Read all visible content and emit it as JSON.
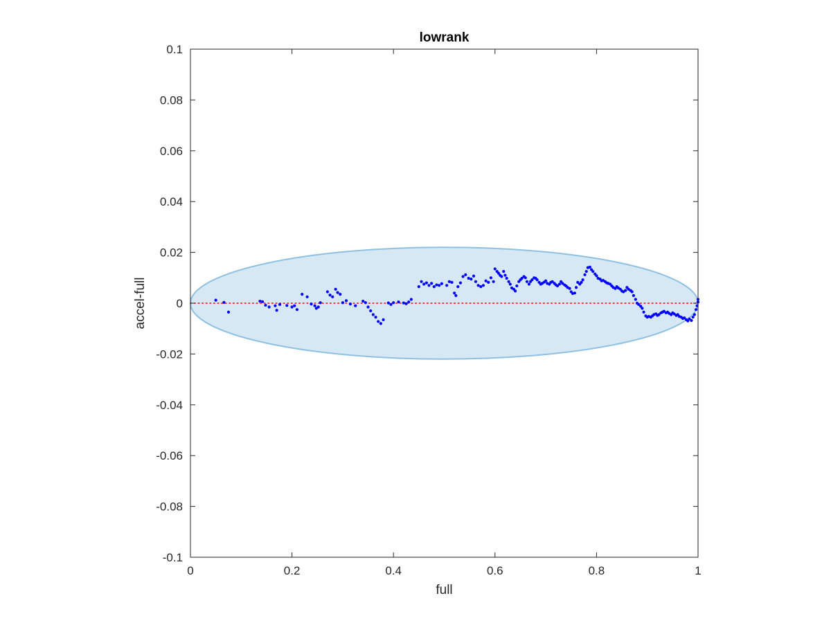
{
  "chart_data": {
    "type": "scatter",
    "title": "lowrank",
    "xlabel": "full",
    "ylabel": "accel-full",
    "xlim": [
      0,
      1
    ],
    "ylim": [
      -0.1,
      0.1
    ],
    "xticks": [
      0,
      0.2,
      0.4,
      0.6,
      0.8,
      1
    ],
    "xtick_labels": [
      "0",
      "0.2",
      "0.4",
      "0.6",
      "0.8",
      "1"
    ],
    "yticks": [
      -0.1,
      -0.08,
      -0.06,
      -0.04,
      -0.02,
      0,
      0.02,
      0.04,
      0.06,
      0.08,
      0.1
    ],
    "ytick_labels": [
      "-0.1",
      "-0.08",
      "-0.06",
      "-0.04",
      "-0.02",
      "0",
      "0.02",
      "0.04",
      "0.06",
      "0.08",
      "0.1"
    ],
    "grid": false,
    "reference_line": {
      "y": 0,
      "style": "dotted",
      "color": "#ff0000"
    },
    "ellipse": {
      "center": [
        0.5,
        0
      ],
      "x_radius": 0.5,
      "y_radius": 0.022,
      "fill": "#d6e8f4",
      "stroke": "#8ec0e2"
    },
    "series": [
      {
        "color": "#0000ff",
        "points": [
          [
            0.05,
            0.0012
          ],
          [
            0.066,
            0.0003
          ],
          [
            0.075,
            -0.0035
          ],
          [
            0.137,
            0.0008
          ],
          [
            0.142,
            0.0006
          ],
          [
            0.148,
            -0.0008
          ],
          [
            0.155,
            -0.0015
          ],
          [
            0.167,
            -0.001
          ],
          [
            0.17,
            -0.0028
          ],
          [
            0.176,
            -0.0005
          ],
          [
            0.19,
            -0.0009
          ],
          [
            0.2,
            -0.0015
          ],
          [
            0.205,
            -0.001
          ],
          [
            0.21,
            -0.0025
          ],
          [
            0.22,
            0.0035
          ],
          [
            0.23,
            0.0025
          ],
          [
            0.238,
            -0.0003
          ],
          [
            0.245,
            -0.001
          ],
          [
            0.248,
            -0.002
          ],
          [
            0.252,
            -0.0015
          ],
          [
            0.256,
            0.0002
          ],
          [
            0.27,
            0.0045
          ],
          [
            0.275,
            0.0032
          ],
          [
            0.28,
            0.0025
          ],
          [
            0.286,
            0.0055
          ],
          [
            0.29,
            0.0042
          ],
          [
            0.295,
            0.0035
          ],
          [
            0.3,
            0.0002
          ],
          [
            0.307,
            0.001
          ],
          [
            0.315,
            -0.0003
          ],
          [
            0.325,
            -0.001
          ],
          [
            0.34,
            0.0008
          ],
          [
            0.345,
            0.0002
          ],
          [
            0.35,
            -0.0015
          ],
          [
            0.355,
            -0.003
          ],
          [
            0.36,
            -0.0045
          ],
          [
            0.365,
            -0.0055
          ],
          [
            0.37,
            -0.0072
          ],
          [
            0.375,
            -0.008
          ],
          [
            0.38,
            -0.0065
          ],
          [
            0.39,
            0.0001
          ],
          [
            0.395,
            -0.0005
          ],
          [
            0.4,
            0.0002
          ],
          [
            0.41,
            0.0005
          ],
          [
            0.42,
            0.0001
          ],
          [
            0.425,
            -0.0002
          ],
          [
            0.43,
            0.0005
          ],
          [
            0.435,
            0.0015
          ],
          [
            0.45,
            0.0065
          ],
          [
            0.455,
            0.0085
          ],
          [
            0.46,
            0.0075
          ],
          [
            0.465,
            0.008
          ],
          [
            0.47,
            0.007
          ],
          [
            0.475,
            0.0078
          ],
          [
            0.48,
            0.0065
          ],
          [
            0.485,
            0.0072
          ],
          [
            0.49,
            0.007
          ],
          [
            0.495,
            0.0077
          ],
          [
            0.505,
            0.007
          ],
          [
            0.51,
            0.0085
          ],
          [
            0.515,
            0.0082
          ],
          [
            0.52,
            0.004
          ],
          [
            0.523,
            0.003
          ],
          [
            0.527,
            0.0065
          ],
          [
            0.532,
            0.008
          ],
          [
            0.537,
            0.0105
          ],
          [
            0.542,
            0.0112
          ],
          [
            0.548,
            0.0098
          ],
          [
            0.553,
            0.0095
          ],
          [
            0.558,
            0.0107
          ],
          [
            0.562,
            0.0085
          ],
          [
            0.567,
            0.007
          ],
          [
            0.572,
            0.0065
          ],
          [
            0.577,
            0.007
          ],
          [
            0.582,
            0.0088
          ],
          [
            0.587,
            0.0082
          ],
          [
            0.592,
            0.01
          ],
          [
            0.597,
            0.0085
          ],
          [
            0.6,
            0.0135
          ],
          [
            0.604,
            0.0125
          ],
          [
            0.607,
            0.0118
          ],
          [
            0.61,
            0.011
          ],
          [
            0.613,
            0.0105
          ],
          [
            0.617,
            0.0125
          ],
          [
            0.62,
            0.011
          ],
          [
            0.623,
            0.0098
          ],
          [
            0.627,
            0.0085
          ],
          [
            0.63,
            0.0075
          ],
          [
            0.633,
            0.006
          ],
          [
            0.637,
            0.0055
          ],
          [
            0.64,
            0.0048
          ],
          [
            0.643,
            0.0068
          ],
          [
            0.647,
            0.0085
          ],
          [
            0.65,
            0.0092
          ],
          [
            0.653,
            0.0098
          ],
          [
            0.657,
            0.0105
          ],
          [
            0.66,
            0.01
          ],
          [
            0.663,
            0.0085
          ],
          [
            0.667,
            0.0075
          ],
          [
            0.67,
            0.0085
          ],
          [
            0.673,
            0.0092
          ],
          [
            0.677,
            0.01
          ],
          [
            0.68,
            0.0098
          ],
          [
            0.683,
            0.0092
          ],
          [
            0.687,
            0.0082
          ],
          [
            0.69,
            0.0075
          ],
          [
            0.693,
            0.0078
          ],
          [
            0.697,
            0.0083
          ],
          [
            0.7,
            0.0088
          ],
          [
            0.703,
            0.0078
          ],
          [
            0.707,
            0.0075
          ],
          [
            0.71,
            0.0082
          ],
          [
            0.713,
            0.0085
          ],
          [
            0.717,
            0.0078
          ],
          [
            0.72,
            0.0072
          ],
          [
            0.723,
            0.0068
          ],
          [
            0.727,
            0.0075
          ],
          [
            0.73,
            0.0085
          ],
          [
            0.733,
            0.0078
          ],
          [
            0.737,
            0.0072
          ],
          [
            0.74,
            0.0068
          ],
          [
            0.743,
            0.0062
          ],
          [
            0.747,
            0.0058
          ],
          [
            0.75,
            0.0045
          ],
          [
            0.753,
            0.0038
          ],
          [
            0.757,
            0.004
          ],
          [
            0.76,
            0.0062
          ],
          [
            0.763,
            0.0082
          ],
          [
            0.767,
            0.0075
          ],
          [
            0.77,
            0.0082
          ],
          [
            0.773,
            0.0092
          ],
          [
            0.777,
            0.0112
          ],
          [
            0.78,
            0.0125
          ],
          [
            0.783,
            0.014
          ],
          [
            0.787,
            0.0142
          ],
          [
            0.79,
            0.0132
          ],
          [
            0.793,
            0.0125
          ],
          [
            0.797,
            0.0115
          ],
          [
            0.8,
            0.0108
          ],
          [
            0.803,
            0.0098
          ],
          [
            0.807,
            0.0095
          ],
          [
            0.81,
            0.0088
          ],
          [
            0.813,
            0.009
          ],
          [
            0.817,
            0.0085
          ],
          [
            0.82,
            0.008
          ],
          [
            0.823,
            0.0078
          ],
          [
            0.827,
            0.0075
          ],
          [
            0.83,
            0.0068
          ],
          [
            0.833,
            0.0062
          ],
          [
            0.837,
            0.0058
          ],
          [
            0.84,
            0.0065
          ],
          [
            0.843,
            0.006
          ],
          [
            0.847,
            0.0055
          ],
          [
            0.85,
            0.0048
          ],
          [
            0.853,
            0.0045
          ],
          [
            0.857,
            0.005
          ],
          [
            0.86,
            0.0062
          ],
          [
            0.863,
            0.0055
          ],
          [
            0.867,
            0.005
          ],
          [
            0.87,
            0.0045
          ],
          [
            0.873,
            0.003
          ],
          [
            0.877,
            0.0015
          ],
          [
            0.88,
            0.0
          ],
          [
            0.883,
            -0.0005
          ],
          [
            0.887,
            -0.0012
          ],
          [
            0.89,
            -0.002
          ],
          [
            0.893,
            -0.0035
          ],
          [
            0.897,
            -0.005
          ],
          [
            0.9,
            -0.0055
          ],
          [
            0.903,
            -0.0052
          ],
          [
            0.907,
            -0.0055
          ],
          [
            0.91,
            -0.005
          ],
          [
            0.913,
            -0.0045
          ],
          [
            0.917,
            -0.0042
          ],
          [
            0.92,
            -0.0048
          ],
          [
            0.923,
            -0.0045
          ],
          [
            0.927,
            -0.0038
          ],
          [
            0.93,
            -0.0035
          ],
          [
            0.933,
            -0.0032
          ],
          [
            0.937,
            -0.0038
          ],
          [
            0.94,
            -0.0035
          ],
          [
            0.943,
            -0.004
          ],
          [
            0.947,
            -0.0045
          ],
          [
            0.95,
            -0.0038
          ],
          [
            0.953,
            -0.0042
          ],
          [
            0.957,
            -0.0048
          ],
          [
            0.96,
            -0.0045
          ],
          [
            0.963,
            -0.0052
          ],
          [
            0.967,
            -0.0055
          ],
          [
            0.97,
            -0.006
          ],
          [
            0.973,
            -0.0058
          ],
          [
            0.977,
            -0.0065
          ],
          [
            0.98,
            -0.007
          ],
          [
            0.983,
            -0.0062
          ],
          [
            0.987,
            -0.0068
          ],
          [
            0.99,
            -0.0055
          ],
          [
            0.993,
            -0.0045
          ],
          [
            0.996,
            -0.0025
          ],
          [
            0.998,
            -0.001
          ],
          [
            1.0,
            0.0005
          ],
          [
            1.0,
            0.0015
          ]
        ]
      }
    ]
  }
}
